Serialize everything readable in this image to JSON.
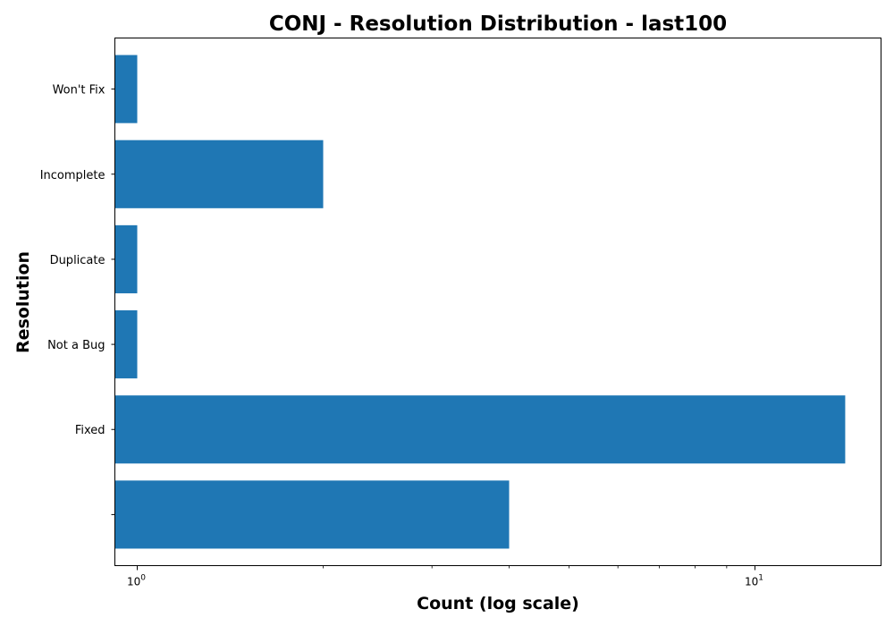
{
  "chart_data": {
    "type": "bar",
    "orientation": "horizontal",
    "title": "CONJ - Resolution Distribution - last100",
    "xlabel": "Count (log scale)",
    "ylabel": "Resolution",
    "x_scale": "log",
    "xlim": [
      0.92,
      16
    ],
    "x_major_ticks": [
      {
        "value": 1,
        "base": "10",
        "exp": "0"
      },
      {
        "value": 10,
        "base": "10",
        "exp": "1"
      }
    ],
    "categories": [
      "",
      "Fixed",
      "Not a Bug",
      "Duplicate",
      "Incomplete",
      "Won't Fix"
    ],
    "values": [
      4,
      14,
      1,
      1,
      2,
      1
    ],
    "bar_color": "#1f77b4",
    "grid": false,
    "legend": "none"
  }
}
